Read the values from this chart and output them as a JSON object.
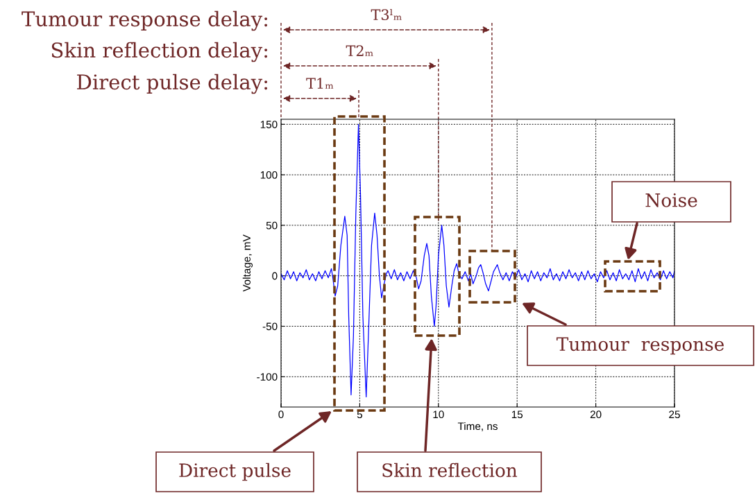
{
  "chart_data": {
    "type": "line",
    "xlabel": "Time, ns",
    "ylabel": "Voltage, mV",
    "xlim": [
      0,
      25
    ],
    "ylim": [
      -130,
      155
    ],
    "xticks": [
      0,
      5,
      10,
      15,
      20,
      25
    ],
    "yticks": [
      -100,
      -50,
      0,
      50,
      100,
      150
    ],
    "grid": true,
    "line_style": "solid",
    "marker": "none",
    "series": [
      {
        "color": "#0000ff",
        "x": [
          0,
          0.2,
          0.4,
          0.6,
          0.8,
          1.0,
          1.2,
          1.4,
          1.6,
          1.8,
          2.0,
          2.2,
          2.4,
          2.6,
          2.8,
          3.0,
          3.2,
          3.3,
          3.44,
          3.6,
          3.8,
          4.05,
          4.2,
          4.3,
          4.45,
          4.6,
          4.75,
          4.92,
          5.05,
          5.2,
          5.41,
          5.55,
          5.75,
          5.95,
          6.1,
          6.25,
          6.39,
          6.55,
          6.69,
          6.8,
          7.0,
          7.2,
          7.4,
          7.6,
          7.8,
          8.0,
          8.2,
          8.4,
          8.6,
          8.74,
          8.9,
          9.1,
          9.26,
          9.4,
          9.55,
          9.74,
          9.85,
          10.0,
          10.21,
          10.35,
          10.5,
          10.67,
          10.85,
          11.0,
          11.16,
          11.3,
          11.5,
          11.7,
          11.9,
          12.05,
          12.2,
          12.4,
          12.55,
          12.69,
          12.85,
          13.0,
          13.18,
          13.35,
          13.5,
          13.74,
          13.9,
          14.1,
          14.3,
          14.5,
          14.7,
          14.9,
          15.1,
          15.3,
          15.5,
          15.7,
          15.9,
          16.1,
          16.3,
          16.5,
          16.7,
          16.9,
          17.1,
          17.3,
          17.5,
          17.7,
          17.9,
          18.1,
          18.3,
          18.5,
          18.7,
          18.9,
          19.1,
          19.3,
          19.5,
          19.7,
          19.9,
          20.1,
          20.3,
          20.5,
          20.7,
          20.9,
          21.1,
          21.3,
          21.5,
          21.7,
          21.9,
          22.1,
          22.3,
          22.5,
          22.7,
          22.9,
          23.1,
          23.3,
          23.5,
          23.7,
          23.9,
          24.1,
          24.3,
          24.5,
          24.7,
          24.9,
          25.0
        ],
        "values": [
          2,
          -4,
          5,
          -3,
          4,
          -5,
          3,
          -2,
          6,
          -4,
          2,
          -5,
          4,
          -3,
          5,
          -2,
          7,
          -3,
          -20,
          -10,
          30,
          59,
          40,
          -40,
          -118,
          -60,
          60,
          150,
          80,
          -40,
          -120,
          -60,
          30,
          62,
          40,
          0,
          -22,
          -8,
          2,
          5,
          -3,
          6,
          -4,
          3,
          -5,
          4,
          -3,
          5,
          -2,
          -13,
          -5,
          20,
          32,
          20,
          -20,
          -50,
          -30,
          20,
          50,
          30,
          -10,
          -31,
          -10,
          5,
          12,
          2,
          -3,
          4,
          -5,
          2,
          -8,
          0,
          8,
          11,
          2,
          -8,
          -15,
          -5,
          4,
          11,
          3,
          -4,
          3,
          -5,
          4,
          -2,
          6,
          -4,
          2,
          -6,
          5,
          -3,
          4,
          -5,
          3,
          -2,
          7,
          -4,
          2,
          -5,
          4,
          -3,
          6,
          -2,
          3,
          -5,
          4,
          -4,
          5,
          -3,
          2,
          -6,
          4,
          -2,
          5,
          -4,
          3,
          -5,
          6,
          -3,
          2,
          -4,
          5,
          -6,
          7,
          -3,
          4,
          -5,
          6,
          -2,
          3,
          -4,
          5,
          -3,
          4,
          -2,
          5
        ]
      }
    ],
    "ref_lines": [
      {
        "axis": "x",
        "value": 13.4,
        "label": "T3ˡₘ",
        "color": "#6e2626",
        "line_style": "dashed"
      },
      {
        "axis": "x",
        "value": 10,
        "label": "T2ₘ",
        "color": "#6e2626",
        "line_style": "dashed"
      }
    ],
    "annotations": [
      "Tumour response delay:",
      "Skin reflection delay:",
      "Direct pulse delay:",
      "T1ₘ",
      "Noise",
      "Tumour  response",
      "Direct pulse",
      "Skin reflection"
    ]
  }
}
